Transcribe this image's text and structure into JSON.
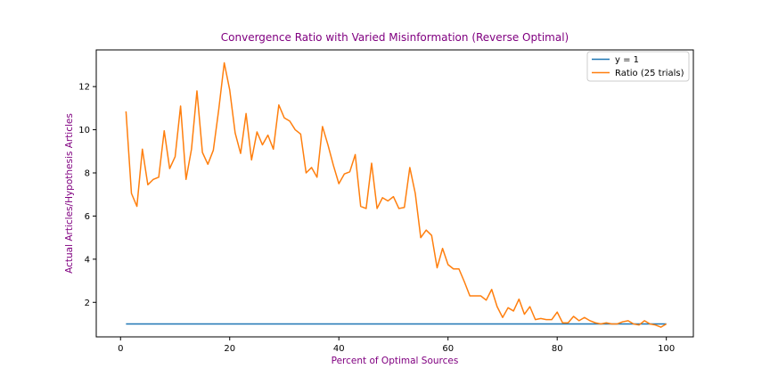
{
  "chart_data": {
    "type": "line",
    "title": "Convergence Ratio with Varied Misinformation (Reverse Optimal)",
    "xlabel": "Percent of Optimal Sources",
    "ylabel": "Actual Articles/Hypothesis Articles",
    "xlim": [
      -4.45,
      104.95
    ],
    "ylim": [
      0.4,
      13.7
    ],
    "x_ticks": [
      0,
      20,
      40,
      60,
      80,
      100
    ],
    "y_ticks": [
      2,
      4,
      6,
      8,
      10,
      12
    ],
    "grid": false,
    "legend_position": "top-right",
    "label_color": "#800080",
    "series": [
      {
        "name": "y = 1",
        "color": "#1f77b4",
        "x": [
          1,
          100
        ],
        "y": [
          1,
          1
        ]
      },
      {
        "name": "Ratio (25 trials)",
        "color": "#ff7f0e",
        "x": [
          1,
          2,
          3,
          4,
          5,
          6,
          7,
          8,
          9,
          10,
          11,
          12,
          13,
          14,
          15,
          16,
          17,
          18,
          19,
          20,
          21,
          22,
          23,
          24,
          25,
          26,
          27,
          28,
          29,
          30,
          31,
          32,
          33,
          34,
          35,
          36,
          37,
          38,
          39,
          40,
          41,
          42,
          43,
          44,
          45,
          46,
          47,
          48,
          49,
          50,
          51,
          52,
          53,
          54,
          55,
          56,
          57,
          58,
          59,
          60,
          61,
          62,
          63,
          64,
          65,
          66,
          67,
          68,
          69,
          70,
          71,
          72,
          73,
          74,
          75,
          76,
          77,
          78,
          79,
          80,
          81,
          82,
          83,
          84,
          85,
          86,
          87,
          88,
          89,
          90,
          91,
          92,
          93,
          94,
          95,
          96,
          97,
          98,
          99,
          100
        ],
        "y": [
          10.85,
          7.05,
          6.45,
          9.1,
          7.45,
          7.7,
          7.8,
          9.95,
          8.2,
          8.75,
          11.1,
          7.7,
          9.1,
          11.8,
          8.95,
          8.4,
          9.05,
          10.95,
          13.1,
          11.85,
          9.85,
          8.9,
          10.75,
          8.6,
          9.9,
          9.3,
          9.75,
          9.1,
          11.15,
          10.55,
          10.4,
          10.0,
          9.8,
          8.0,
          8.25,
          7.8,
          10.15,
          9.3,
          8.35,
          7.5,
          7.95,
          8.05,
          8.85,
          6.45,
          6.35,
          8.45,
          6.35,
          6.85,
          6.7,
          6.9,
          6.35,
          6.4,
          8.25,
          7.05,
          5.0,
          5.35,
          5.1,
          3.6,
          4.5,
          3.75,
          3.55,
          3.55,
          2.95,
          2.3,
          2.3,
          2.3,
          2.1,
          2.6,
          1.8,
          1.3,
          1.75,
          1.6,
          2.15,
          1.45,
          1.8,
          1.2,
          1.25,
          1.2,
          1.2,
          1.55,
          1.05,
          1.05,
          1.35,
          1.15,
          1.3,
          1.15,
          1.05,
          1.0,
          1.05,
          1.0,
          1.0,
          1.1,
          1.15,
          1.0,
          0.95,
          1.15,
          1.0,
          0.95,
          0.85,
          1.0
        ]
      }
    ]
  }
}
